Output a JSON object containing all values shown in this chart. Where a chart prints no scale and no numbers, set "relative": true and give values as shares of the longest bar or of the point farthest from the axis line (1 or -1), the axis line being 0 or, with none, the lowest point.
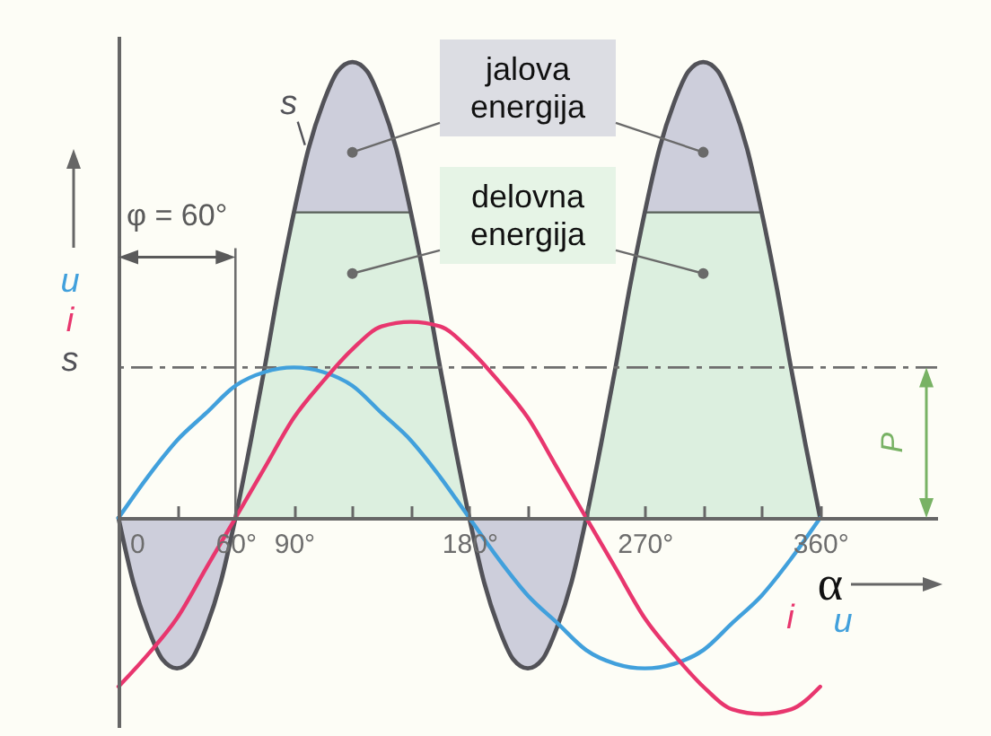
{
  "chart_data": {
    "type": "line",
    "relative": true,
    "xlabel": "α",
    "xlim": [
      0,
      420
    ],
    "xticks": [
      0,
      {
        "value": 30,
        "label": null
      },
      {
        "value": 60,
        "label": "60°"
      },
      {
        "value": 90,
        "label": "90°"
      },
      {
        "value": 120,
        "label": null
      },
      {
        "value": 150,
        "label": null
      },
      {
        "value": 180,
        "label": "180°"
      },
      {
        "value": 210,
        "label": null
      },
      {
        "value": 240,
        "label": null
      },
      {
        "value": 270,
        "label": "270°"
      },
      {
        "value": 300,
        "label": null
      },
      {
        "value": 330,
        "label": null
      },
      {
        "value": 360,
        "label": "360°"
      }
    ],
    "x": [
      0,
      7.5,
      15,
      22.5,
      30,
      37.5,
      45,
      52.5,
      60,
      67.5,
      75,
      82.5,
      90,
      97.5,
      105,
      112.5,
      120,
      127.5,
      135,
      142.5,
      150,
      157.5,
      165,
      172.5,
      180,
      187.5,
      195,
      202.5,
      210,
      217.5,
      225,
      232.5,
      240,
      247.5,
      255,
      262.5,
      270,
      277.5,
      285,
      292.5,
      300,
      307.5,
      315,
      322.5,
      330,
      337.5,
      345,
      352.5,
      360
    ],
    "series": [
      {
        "name": "u",
        "type": "line",
        "color": "#41a0dc",
        "x": [
          0,
          15,
          30,
          45,
          60,
          75,
          90,
          105,
          120,
          135,
          150,
          165,
          180,
          195,
          210,
          225,
          240,
          255,
          270,
          285,
          300,
          315,
          330,
          345,
          360
        ],
        "values": [
          0,
          0.09,
          0.17,
          0.23,
          0.29,
          0.32,
          0.33,
          0.32,
          0.29,
          0.23,
          0.17,
          0.09,
          0,
          -0.09,
          -0.17,
          -0.23,
          -0.29,
          -0.32,
          -0.33,
          -0.32,
          -0.29,
          -0.23,
          -0.17,
          -0.09,
          0
        ]
      },
      {
        "name": "i",
        "type": "line",
        "color": "#e8366e",
        "x": [
          0,
          15,
          30,
          45,
          60,
          75,
          90,
          105,
          120,
          135,
          150,
          165,
          180,
          195,
          210,
          225,
          240,
          255,
          270,
          285,
          300,
          315,
          330,
          345,
          360
        ],
        "values": [
          -0.37,
          -0.3,
          -0.22,
          -0.11,
          0,
          0.11,
          0.22,
          0.3,
          0.37,
          0.42,
          0.43,
          0.42,
          0.37,
          0.3,
          0.22,
          0.11,
          0,
          -0.11,
          -0.22,
          -0.3,
          -0.37,
          -0.42,
          -0.43,
          -0.42,
          -0.37
        ]
      },
      {
        "name": "s",
        "type": "area",
        "color": "#cdcedb",
        "values": [
          0,
          -0.14,
          -0.24,
          -0.31,
          -0.33,
          -0.31,
          -0.24,
          -0.14,
          0,
          0.16,
          0.33,
          0.51,
          0.67,
          0.81,
          0.91,
          0.98,
          1,
          0.98,
          0.91,
          0.81,
          0.67,
          0.51,
          0.33,
          0.16,
          0,
          -0.14,
          -0.24,
          -0.31,
          -0.33,
          -0.31,
          -0.24,
          -0.14,
          0,
          0.16,
          0.33,
          0.51,
          0.67,
          0.81,
          0.91,
          0.98,
          1,
          0.98,
          0.91,
          0.81,
          0.67,
          0.51,
          0.33,
          0.16,
          0
        ]
      },
      {
        "type": "area",
        "color": "#dcefdf",
        "values": [
          null,
          null,
          null,
          null,
          null,
          null,
          null,
          null,
          0,
          0.16,
          0.33,
          0.51,
          0.67,
          0.67,
          0.67,
          0.67,
          0.67,
          0.67,
          0.67,
          0.67,
          0.67,
          0.51,
          0.33,
          0.16,
          0,
          null,
          null,
          null,
          null,
          null,
          null,
          null,
          0,
          0.16,
          0.33,
          0.51,
          0.67,
          0.67,
          0.67,
          0.67,
          0.67,
          0.67,
          0.67,
          0.67,
          0.67,
          0.51,
          0.33,
          0.16,
          0
        ]
      }
    ],
    "ref_lines": [
      {
        "axis": "y",
        "value": 0.33,
        "label": "P",
        "color": "#6e6e6e",
        "line_style": "dashed"
      },
      {
        "axis": "x",
        "value": 60,
        "label": "φ = 60°",
        "color": "#6e6e6e"
      }
    ],
    "annotations": [
      "jalova energija",
      "delovna energija"
    ],
    "legend": "left"
  }
}
